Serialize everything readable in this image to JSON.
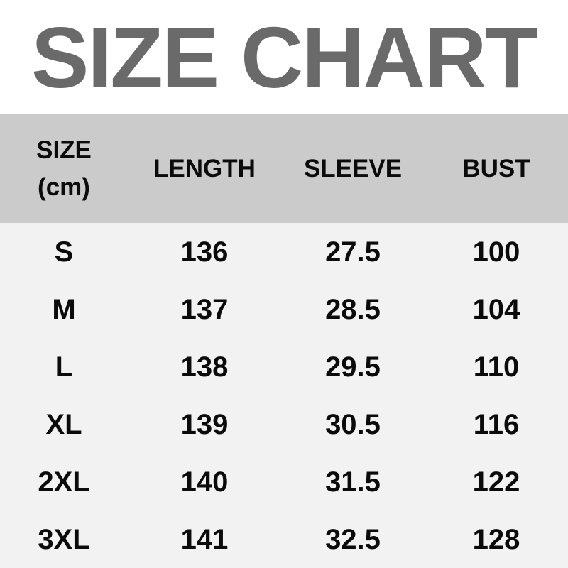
{
  "title": "SIZE CHART",
  "colors": {
    "title_color": "#6a6a6a",
    "header_bg": "#cbcbcb",
    "body_bg": "#f2f2f2",
    "text_color": "#0b0b0b",
    "page_bg": "#ffffff"
  },
  "table": {
    "header": {
      "size_line1": "SIZE",
      "size_line2": "(cm)",
      "length": "LENGTH",
      "sleeve": "SLEEVE",
      "bust": "BUST"
    },
    "rows": [
      {
        "size": "S",
        "length": "136",
        "sleeve": "27.5",
        "bust": "100"
      },
      {
        "size": "M",
        "length": "137",
        "sleeve": "28.5",
        "bust": "104"
      },
      {
        "size": "L",
        "length": "138",
        "sleeve": "29.5",
        "bust": "110"
      },
      {
        "size": "XL",
        "length": "139",
        "sleeve": "30.5",
        "bust": "116"
      },
      {
        "size": "2XL",
        "length": "140",
        "sleeve": "31.5",
        "bust": "122"
      },
      {
        "size": "3XL",
        "length": "141",
        "sleeve": "32.5",
        "bust": "128"
      }
    ]
  },
  "chart_data": {
    "type": "table",
    "title": "SIZE CHART",
    "unit": "cm",
    "columns": [
      "SIZE (cm)",
      "LENGTH",
      "SLEEVE",
      "BUST"
    ],
    "rows": [
      [
        "S",
        136,
        27.5,
        100
      ],
      [
        "M",
        137,
        28.5,
        104
      ],
      [
        "L",
        138,
        29.5,
        110
      ],
      [
        "XL",
        139,
        30.5,
        116
      ],
      [
        "2XL",
        140,
        31.5,
        122
      ],
      [
        "3XL",
        141,
        32.5,
        128
      ]
    ]
  }
}
